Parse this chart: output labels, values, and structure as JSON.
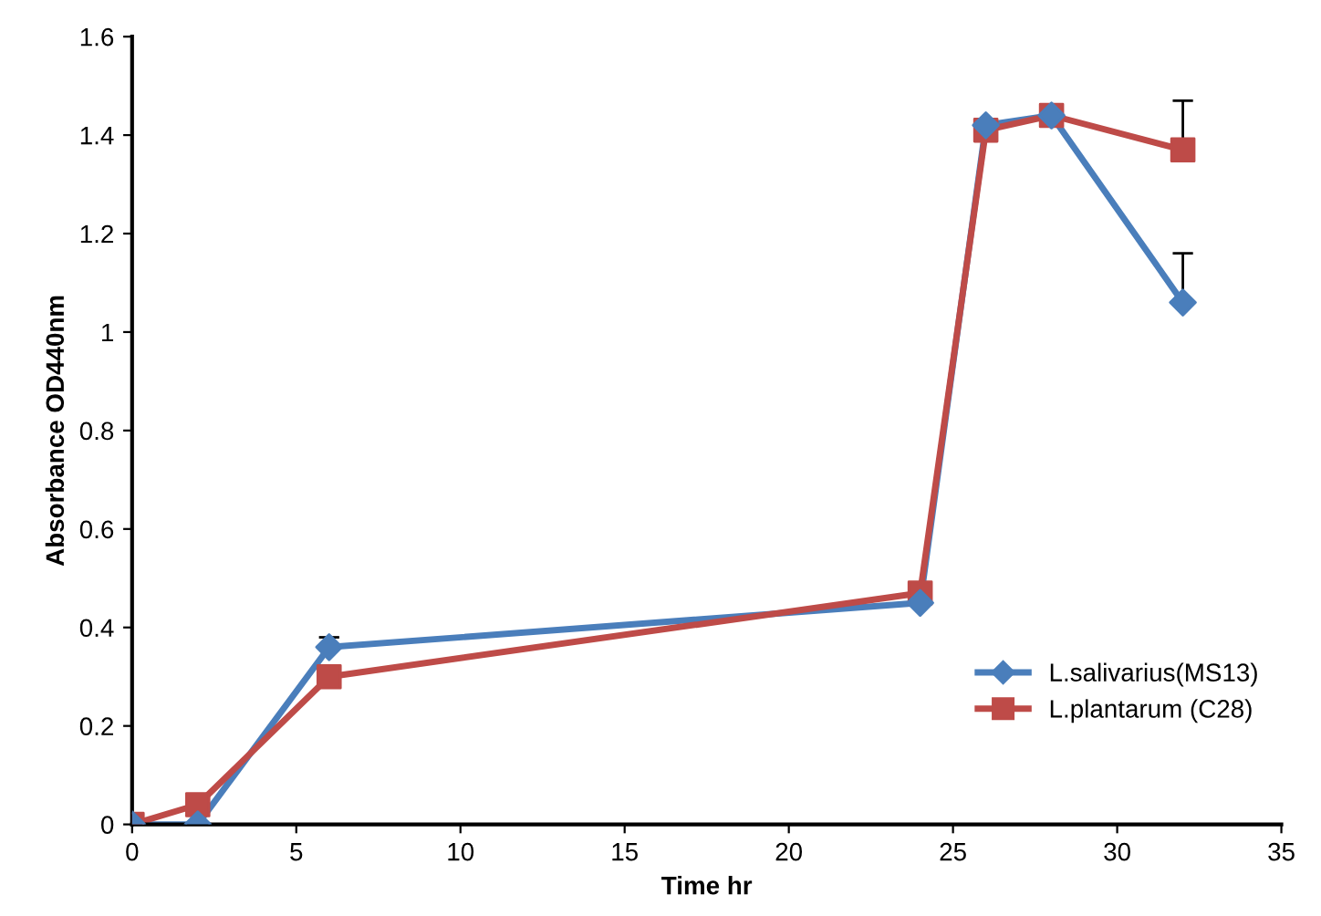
{
  "chart_data": {
    "type": "line",
    "xlabel": "Time hr",
    "ylabel": "Absorbance OD440nm",
    "x": [
      0,
      2,
      6,
      24,
      26,
      28,
      32
    ],
    "series": [
      {
        "name": "L.salivarius(MS13)",
        "color": "#4a7ebb",
        "marker": "diamond",
        "values": [
          0,
          0,
          0.36,
          0.45,
          1.42,
          1.44,
          1.06
        ],
        "errors": [
          null,
          null,
          [
            0.36,
            0.38
          ],
          null,
          null,
          null,
          [
            1.06,
            1.16
          ]
        ]
      },
      {
        "name": "L.plantarum (C28)",
        "color": "#be4b48",
        "marker": "square",
        "values": [
          0,
          0.04,
          0.3,
          0.47,
          1.41,
          1.44,
          1.37
        ],
        "errors": [
          null,
          null,
          null,
          null,
          null,
          null,
          [
            1.37,
            1.47
          ]
        ]
      }
    ],
    "xlim": [
      0,
      35
    ],
    "xticks": [
      0,
      5,
      10,
      15,
      20,
      25,
      30,
      35
    ],
    "ylim": [
      0,
      1.6
    ],
    "yticks": [
      0,
      0.2,
      0.4,
      0.6,
      0.8,
      1,
      1.2,
      1.4,
      1.6
    ],
    "grid": false,
    "legend": "lower right",
    "line_style": "solid"
  }
}
